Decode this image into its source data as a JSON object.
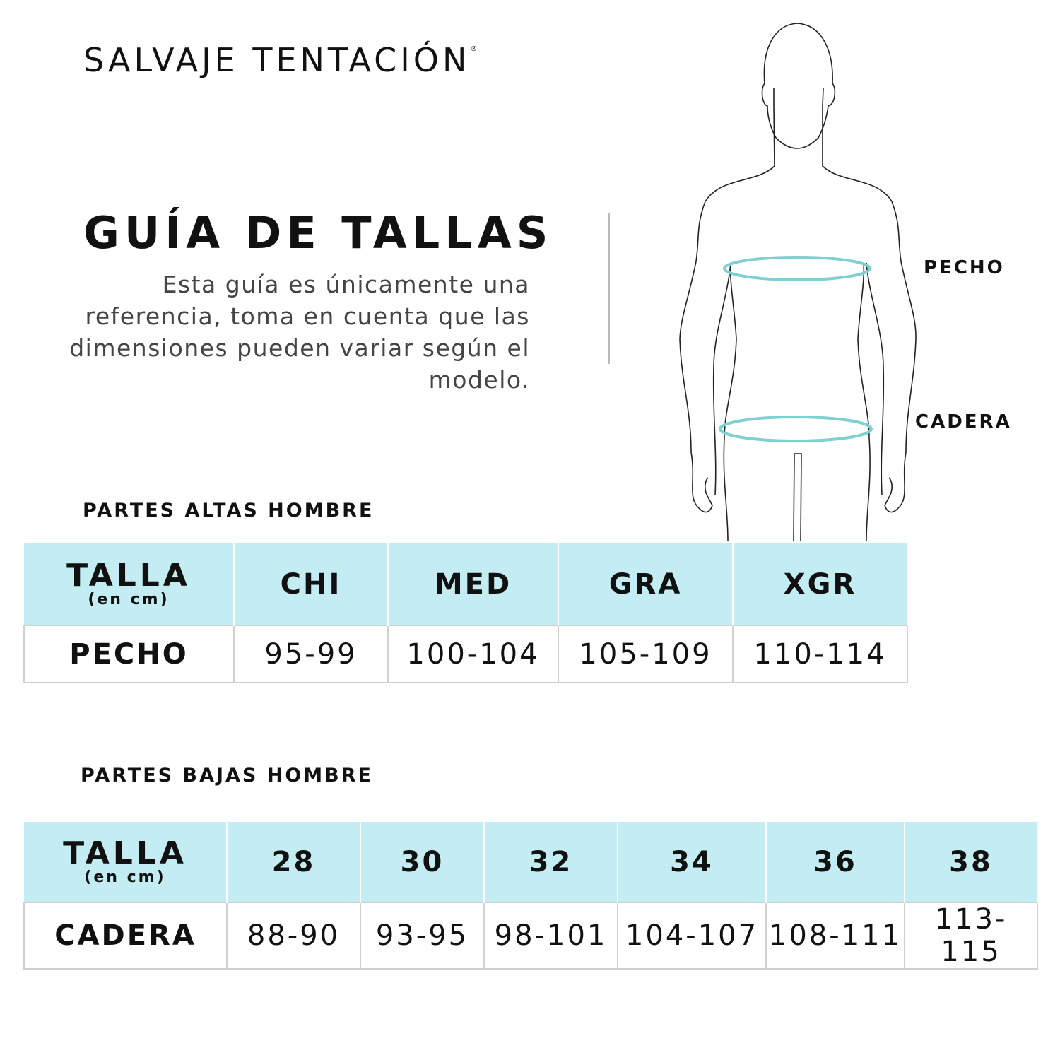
{
  "brand": {
    "name": "SALVAJE TENTACIÓN",
    "mark": "®"
  },
  "title": "GUÍA DE TALLAS",
  "description": "Esta guía es únicamente una referencia, toma en cuenta que las dimensiones pueden variar según el modelo.",
  "figure": {
    "labels": {
      "chest": "PECHO",
      "hip": "CADERA"
    },
    "ring_color": "#7fd0d0"
  },
  "colors": {
    "header_bg": "#c3edf2",
    "text": "#111111"
  },
  "tops": {
    "section_title": "PARTES ALTAS HOMBRE",
    "header_label": "TALLA",
    "header_unit": "(en cm)",
    "sizes": [
      "CHI",
      "MED",
      "GRA",
      "XGR"
    ],
    "row_label": "PECHO",
    "values": [
      "95-99",
      "100-104",
      "105-109",
      "110-114"
    ]
  },
  "bottoms": {
    "section_title": "PARTES BAJAS HOMBRE",
    "header_label": "TALLA",
    "header_unit": "(en cm)",
    "sizes": [
      "28",
      "30",
      "32",
      "34",
      "36",
      "38"
    ],
    "row_label": "CADERA",
    "values": [
      "88-90",
      "93-95",
      "98-101",
      "104-107",
      "108-111",
      "113-115"
    ]
  }
}
